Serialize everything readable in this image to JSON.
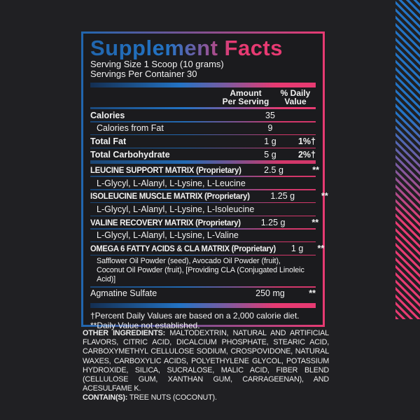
{
  "theme": {
    "page-bg": "#202023",
    "box-bg": "#1b1b1e",
    "blue": "#2166ae",
    "bright-blue": "#2373c4",
    "navy": "#142f52",
    "purple": "#7b5ba1",
    "pink": "#e73a72",
    "text": "#f2f2f2"
  },
  "header": {
    "title": "Supplement Facts",
    "serving_size": "Serving Size 1 Scoop (10 grams)",
    "servings_per_container": "Servings Per Container 30"
  },
  "columns": {
    "amount_line1": "Amount",
    "amount_line2": "Per Serving",
    "daily_line1": "% Daily",
    "daily_line2": "Value"
  },
  "rows": [
    {
      "label": "Calories",
      "amount": "35",
      "dv": "",
      "style": "main",
      "sep": "thin"
    },
    {
      "label": "Calories from Fat",
      "amount": "9",
      "dv": "",
      "style": "sub",
      "sep": "thin"
    },
    {
      "label": "Total Fat",
      "amount": "1 g",
      "dv": "1%†",
      "style": "main",
      "sep": "thin"
    },
    {
      "label": "Total Carbohydrate",
      "amount": "5 g",
      "dv": "2%†",
      "style": "main",
      "sep": "thick"
    },
    {
      "label": "LEUCINE SUPPORT MATRIX (Proprietary)",
      "amount": "2.5 g",
      "dv": "**",
      "style": "matrix",
      "sep": "thin"
    },
    {
      "label": "L-Glycyl, L-Alanyl, L-Lysine, L-Leucine",
      "amount": "",
      "dv": "",
      "style": "detail",
      "sep": "thin"
    },
    {
      "label": "ISOLEUCINE MUSCLE MATRIX (Proprietary)",
      "amount": "1.25 g",
      "dv": "**",
      "style": "matrix",
      "sep": "thin"
    },
    {
      "label": "L-Glycyl, L-Alanyl, L-Lysine, L-Isoleucine",
      "amount": "",
      "dv": "",
      "style": "detail",
      "sep": "thin"
    },
    {
      "label": "VALINE RECOVERY MATRIX (Proprietary)",
      "amount": "1.25 g",
      "dv": "**",
      "style": "matrix",
      "sep": "thin"
    },
    {
      "label": "L-Glycyl, L-Alanyl, L-Lysine, L-Valine",
      "amount": "",
      "dv": "",
      "style": "detail",
      "sep": "thin"
    },
    {
      "label": "OMEGA 6 FATTY ACIDS & CLA MATRIX (Proprietary)",
      "amount": "1 g",
      "dv": "**",
      "style": "matrix-inline",
      "sep": "thin"
    },
    {
      "lines": [
        "Safflower Oil Powder (seed), Avocado Oil Powder (fruit),",
        "Coconut Oil Powder (fruit), [Providing CLA (Conjugated Linoleic Acid)]"
      ],
      "style": "detail-multi",
      "sep": "thin"
    },
    {
      "label": "Agmatine Sulfate",
      "amount": "250 mg",
      "dv": "**",
      "style": "plain",
      "sep": "none"
    }
  ],
  "footnotes": [
    "†Percent Daily Values are based on a 2,000 calorie diet.",
    "**Daily Value not established."
  ],
  "other_ingredients": {
    "label": "OTHER INGREDIENTS:",
    "text": "MALTODEXTRIN, NATURAL AND ARTIFICIAL FLAVORS, CITRIC ACID, DICALCIUM PHOSPHATE, STEARIC ACID, CARBOXYMETHYL CELLULOSE SODIUM, CROSPOVIDONE, NATURAL WAXES, CARBOXYLIC ACIDS, POLYETHYLENE GLYCOL, POTASSIUM HYDROXIDE, SILICA, SUCRALOSE, MALIC ACID, FIBER BLEND (CELLULOSE GUM, XANTHAN GUM, CARRAGEENAN), AND ACESULFAME K."
  },
  "contains": {
    "label": "CONTAIN(S):",
    "text": "TREE NUTS (COCONUT)."
  }
}
